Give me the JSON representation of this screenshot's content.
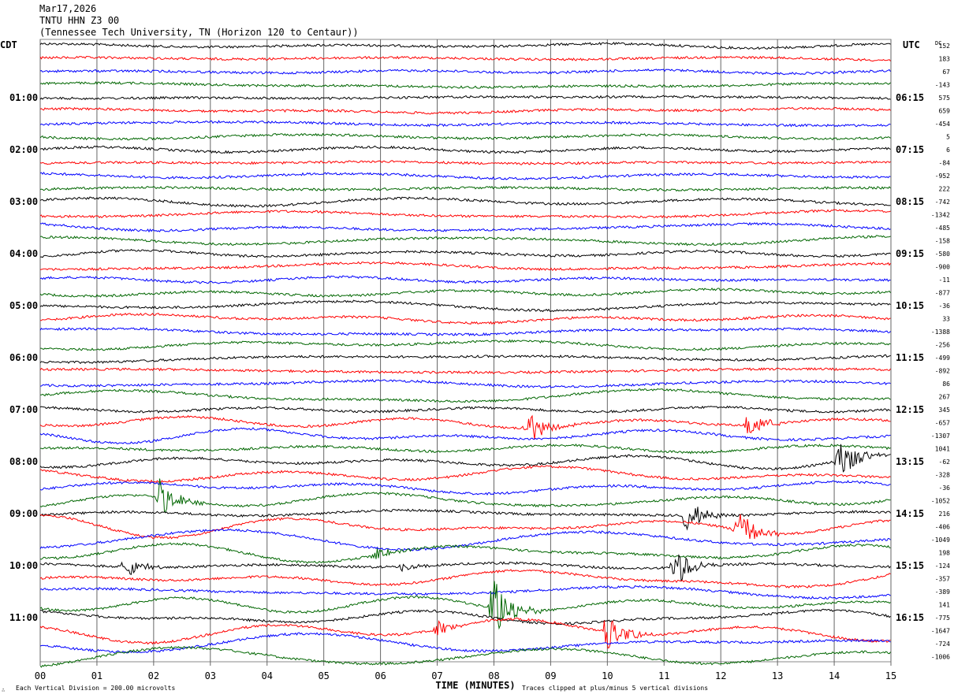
{
  "header": {
    "date": "Mar17,2026",
    "station": "TNTU HHN Z3 00",
    "location": "(Tennessee Tech University, TN (Horizon 120 to Centaur))"
  },
  "footer": {
    "scale_note": "Each Vertical Division =  200.00 microvolts",
    "clip_note": "Traces clipped at plus/minus 5 vertical divisions",
    "mark": "∴"
  },
  "chart_data": {
    "type": "line",
    "title": "TNTU HHN Z3 00",
    "xlabel": "TIME (MINUTES)",
    "left_timezone": "CDT",
    "right_timezone": "UTC",
    "dc_header": "DC",
    "xlim": [
      0,
      15
    ],
    "x_ticks": [
      "00",
      "01",
      "02",
      "03",
      "04",
      "05",
      "06",
      "07",
      "08",
      "09",
      "10",
      "11",
      "12",
      "13",
      "14",
      "15"
    ],
    "trace_colors": [
      "#000000",
      "#ff0000",
      "#0000ff",
      "#006600"
    ],
    "left_labels": [
      "01:00",
      "02:00",
      "03:00",
      "04:00",
      "05:00",
      "06:00",
      "07:00",
      "08:00",
      "09:00",
      "10:00",
      "11:00"
    ],
    "right_labels": [
      "06:15",
      "07:15",
      "08:15",
      "09:15",
      "10:15",
      "11:15",
      "12:15",
      "13:15",
      "14:15",
      "15:15",
      "16:15"
    ],
    "dc_offsets": [
      "152",
      "183",
      "67",
      "-143",
      "575",
      "659",
      "-454",
      "5",
      "6",
      "-84",
      "-952",
      "222",
      "-742",
      "-1342",
      "-485",
      "-158",
      "-580",
      "-900",
      "-11",
      "-877",
      "-36",
      "33",
      "-1388",
      "-256",
      "-499",
      "-892",
      "86",
      "267",
      "345",
      "-657",
      "-1307",
      "1041",
      "-62",
      "-328",
      "-36",
      "-1052",
      "216",
      "-406",
      "-1049",
      "198",
      "-124",
      "-357",
      "-389",
      "141",
      "-775",
      "-1647",
      "-724",
      "-1006"
    ],
    "events": [
      {
        "trace": 29,
        "minute": 8.6,
        "amplitude": 1.2
      },
      {
        "trace": 29,
        "minute": 12.5,
        "amplitude": 1.0
      },
      {
        "trace": 32,
        "minute": 14.1,
        "amplitude": 1.6
      },
      {
        "trace": 35,
        "minute": 2.1,
        "amplitude": 1.4
      },
      {
        "trace": 36,
        "minute": 11.4,
        "amplitude": 1.3
      },
      {
        "trace": 37,
        "minute": 12.3,
        "amplitude": 1.5
      },
      {
        "trace": 39,
        "minute": 5.9,
        "amplitude": 0.5
      },
      {
        "trace": 40,
        "minute": 1.5,
        "amplitude": 0.8
      },
      {
        "trace": 40,
        "minute": 11.2,
        "amplitude": 1.5
      },
      {
        "trace": 40,
        "minute": 6.4,
        "amplitude": 0.4
      },
      {
        "trace": 43,
        "minute": 8.0,
        "amplitude": 2.5
      },
      {
        "trace": 45,
        "minute": 10.0,
        "amplitude": 1.5
      },
      {
        "trace": 45,
        "minute": 7.0,
        "amplitude": 0.6
      }
    ]
  }
}
